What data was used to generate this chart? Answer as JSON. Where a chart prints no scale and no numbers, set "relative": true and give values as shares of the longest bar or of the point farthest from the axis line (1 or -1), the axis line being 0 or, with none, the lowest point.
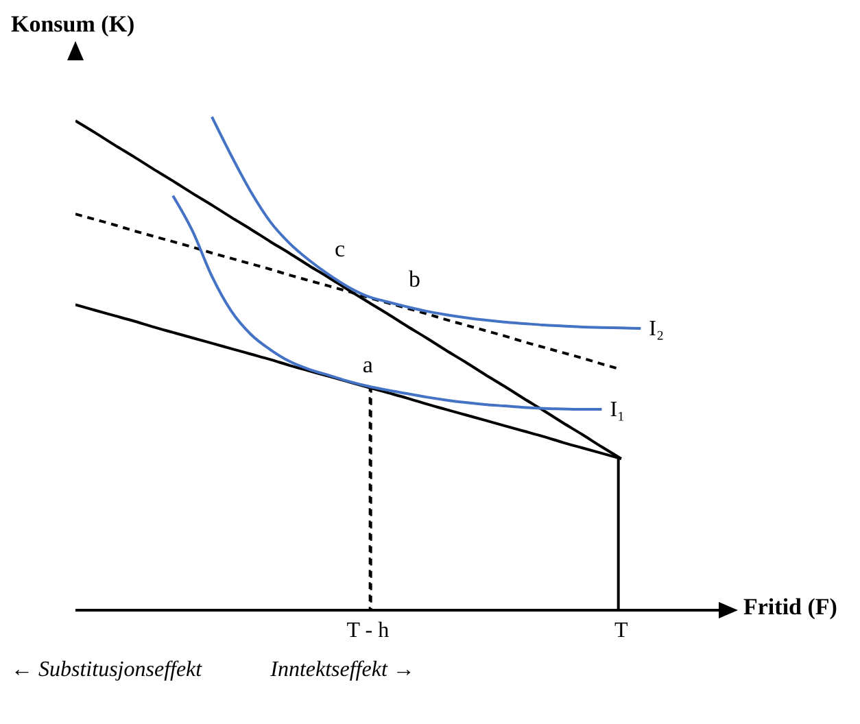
{
  "chart_data": {
    "type": "line",
    "relative": true,
    "ylabel": "Konsum (K)",
    "xlabel": "Fritid (F)",
    "tick_labels": "x",
    "marker": "none",
    "categories": [
      null,
      null,
      null,
      null,
      null,
      null,
      null,
      null,
      null,
      null,
      null,
      null,
      null,
      null,
      null,
      "T - h",
      null,
      null,
      null,
      null,
      null,
      null,
      null,
      null,
      null,
      null,
      null,
      null,
      "T",
      null,
      null,
      null,
      null,
      null
    ],
    "series": [
      {
        "color": "#000000",
        "values": [
          0.619,
          0.608,
          0.597,
          0.586,
          0.574,
          0.563,
          0.552,
          0.541,
          0.53,
          0.519,
          0.508,
          0.496,
          0.485,
          0.474,
          0.463,
          0.452,
          0.441,
          0.43,
          0.418,
          0.407,
          0.396,
          0.385,
          0.374,
          0.363,
          0.352,
          0.34,
          0.329,
          0.318,
          0.307,
          null,
          null,
          null,
          null,
          null
        ]
      },
      {
        "color": "#000000",
        "values": [
          0.992,
          0.968,
          0.943,
          0.919,
          0.894,
          0.87,
          0.845,
          0.821,
          0.796,
          0.772,
          0.747,
          0.723,
          0.698,
          0.674,
          0.649,
          0.625,
          0.601,
          0.576,
          0.552,
          0.527,
          0.503,
          0.478,
          0.454,
          0.429,
          0.405,
          0.38,
          0.356,
          0.331,
          0.307,
          null,
          null,
          null,
          null,
          null
        ]
      },
      {
        "color": "#000000",
        "line_style": "dashed",
        "values": [
          0.803,
          0.792,
          0.781,
          0.769,
          0.758,
          0.747,
          0.736,
          0.724,
          0.713,
          0.702,
          0.691,
          0.679,
          0.668,
          0.657,
          0.646,
          0.634,
          0.623,
          0.612,
          0.601,
          0.589,
          0.578,
          0.567,
          0.556,
          0.544,
          0.533,
          0.522,
          0.511,
          0.499,
          0.488,
          null,
          null,
          null,
          null,
          null
        ]
      },
      {
        "type": "bar",
        "color": "#000000",
        "values": [
          null,
          null,
          null,
          null,
          null,
          null,
          null,
          null,
          null,
          null,
          null,
          null,
          null,
          null,
          null,
          null,
          null,
          null,
          null,
          null,
          null,
          null,
          null,
          null,
          null,
          null,
          null,
          null,
          0.307,
          null,
          null,
          null,
          null,
          null
        ]
      },
      {
        "type": "bar",
        "color": "#000000",
        "line_style": "dashed",
        "values": [
          null,
          null,
          null,
          null,
          null,
          null,
          null,
          null,
          null,
          null,
          null,
          null,
          null,
          null,
          null,
          0.452,
          null,
          null,
          null,
          null,
          null,
          null,
          null,
          null,
          null,
          null,
          null,
          null,
          null,
          null,
          null,
          null,
          null,
          null
        ]
      },
      {
        "name": "I₁",
        "color": "#4472c4",
        "values": [
          null,
          null,
          null,
          null,
          null,
          0.84,
          0.769,
          0.677,
          0.606,
          0.559,
          0.528,
          0.504,
          0.488,
          0.476,
          0.464,
          0.454,
          0.446,
          0.439,
          0.432,
          0.426,
          0.421,
          0.417,
          0.414,
          0.411,
          0.409,
          0.408,
          0.407,
          0.407,
          null,
          null,
          null,
          null,
          null,
          null
        ]
      },
      {
        "name": "I₂",
        "color": "#4472c4",
        "values": [
          null,
          null,
          null,
          null,
          null,
          null,
          null,
          1.0,
          0.921,
          0.848,
          0.787,
          0.743,
          0.709,
          0.68,
          0.655,
          0.636,
          0.625,
          0.615,
          0.606,
          0.599,
          0.593,
          0.588,
          0.584,
          0.581,
          0.578,
          0.576,
          0.574,
          0.573,
          0.572,
          0.571,
          null,
          null,
          null,
          null
        ]
      }
    ],
    "annotations": [
      {
        "text": "a",
        "x": "T - h",
        "y": 0.454
      },
      "b",
      "c",
      "← Substitusjonseffekt",
      "Inntektseffekt →"
    ]
  }
}
